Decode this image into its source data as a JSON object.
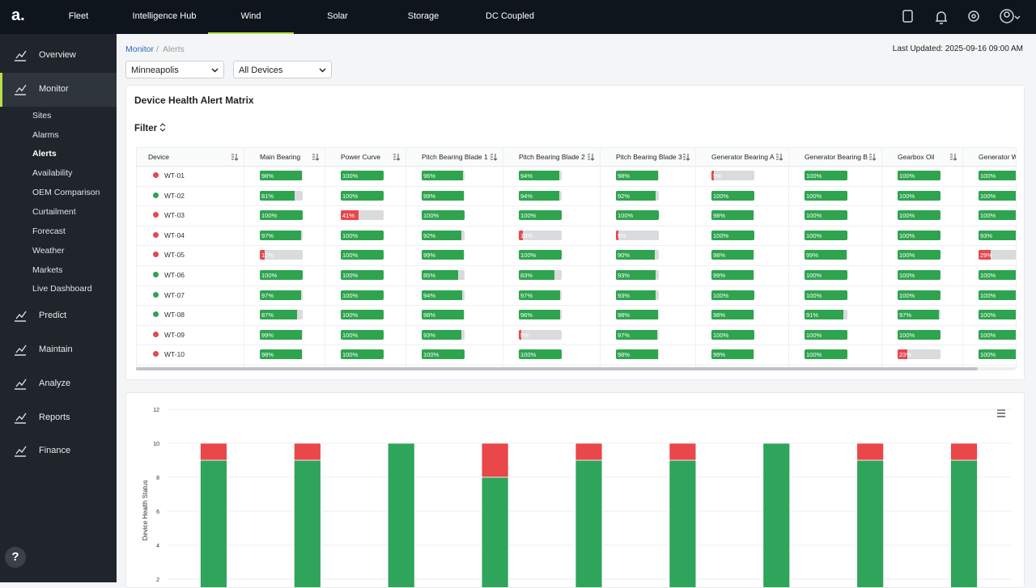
{
  "nav": {
    "logo": "a.",
    "tabs": [
      "Fleet",
      "Intelligence Hub",
      "Wind",
      "Solar",
      "Storage",
      "DC Coupled"
    ],
    "active": 2
  },
  "sidebar": {
    "items": [
      "Overview",
      "Monitor",
      "Predict",
      "Maintain",
      "Analyze",
      "Reports",
      "Finance"
    ],
    "active": 1,
    "submenu": [
      "Sites",
      "Alarms",
      "Alerts",
      "Availability",
      "OEM Comparison",
      "Curtailment",
      "Forecast",
      "Weather",
      "Markets",
      "Live Dashboard"
    ],
    "submenu_active": 2,
    "help": "?"
  },
  "breadcrumb": {
    "items": [
      "Monitor",
      "Alerts"
    ],
    "separator": "/"
  },
  "last_updated": "Last Updated: 2025-09-16 09:00 AM",
  "filters": [
    "Minneapolis",
    "All Devices"
  ],
  "matrix": {
    "title": "Device Health Alert Matrix",
    "filter": "Filter",
    "columns": [
      "Device",
      "Main Bearing",
      "Power Curve",
      "Pitch Bearing Blade 1",
      "Pitch Bearing Blade 2",
      "Pitch Bearing Blade 3",
      "Generator Bearing A",
      "Generator Bearing B",
      "Gearbox Oil",
      "Generator W"
    ],
    "rows": [
      {
        "device": "WT-01",
        "status": "#e5484d",
        "cells": [
          "98%",
          "100%",
          "96%",
          "94%",
          "98%",
          "5%",
          "100%",
          "100%",
          "100%"
        ]
      },
      {
        "device": "WT-02",
        "status": "#2ea44f",
        "cells": [
          "81%",
          "100%",
          "99%",
          "94%",
          "92%",
          "100%",
          "100%",
          "100%",
          "100%"
        ]
      },
      {
        "device": "WT-03",
        "status": "#e5484d",
        "cells": [
          "100%",
          "41%",
          "100%",
          "100%",
          "100%",
          "98%",
          "100%",
          "100%",
          "100%"
        ]
      },
      {
        "device": "WT-04",
        "status": "#e5484d",
        "cells": [
          "97%",
          "100%",
          "92%",
          "10%",
          "5%",
          "100%",
          "100%",
          "100%",
          "93%"
        ]
      },
      {
        "device": "WT-05",
        "status": "#e5484d",
        "cells": [
          "12%",
          "100%",
          "99%",
          "100%",
          "90%",
          "98%",
          "99%",
          "100%",
          "29%"
        ]
      },
      {
        "device": "WT-06",
        "status": "#2ea44f",
        "cells": [
          "100%",
          "100%",
          "85%",
          "83%",
          "93%",
          "99%",
          "100%",
          "100%",
          "100%"
        ]
      },
      {
        "device": "WT-07",
        "status": "#2ea44f",
        "cells": [
          "97%",
          "100%",
          "94%",
          "97%",
          "93%",
          "100%",
          "100%",
          "100%",
          "100%"
        ]
      },
      {
        "device": "WT-08",
        "status": "#2ea44f",
        "cells": [
          "87%",
          "100%",
          "98%",
          "96%",
          "98%",
          "98%",
          "91%",
          "97%",
          "100%"
        ]
      },
      {
        "device": "WT-09",
        "status": "#e5484d",
        "cells": [
          "99%",
          "100%",
          "93%",
          "5%",
          "97%",
          "100%",
          "100%",
          "100%",
          "100%"
        ]
      },
      {
        "device": "WT-10",
        "status": "#e5484d",
        "cells": [
          "98%",
          "100%",
          "100%",
          "100%",
          "98%",
          "99%",
          "100%",
          "23%",
          "100%"
        ]
      }
    ]
  },
  "chart_data": {
    "type": "bar",
    "stacked": true,
    "ylabel": "Device Health Status",
    "categories": [
      null,
      null,
      null,
      null,
      null,
      null,
      null,
      null,
      null
    ],
    "series": [
      {
        "color": "#2ea55a",
        "values": [
          9,
          9,
          10,
          8,
          9,
          9,
          10,
          9,
          9
        ]
      },
      {
        "color": "#e9474a",
        "values": [
          1,
          1,
          0,
          2,
          1,
          1,
          0,
          1,
          1
        ]
      }
    ],
    "ylim": [
      0,
      12
    ],
    "yticks": [
      2,
      4,
      6,
      8,
      10,
      12
    ],
    "grid": true
  }
}
